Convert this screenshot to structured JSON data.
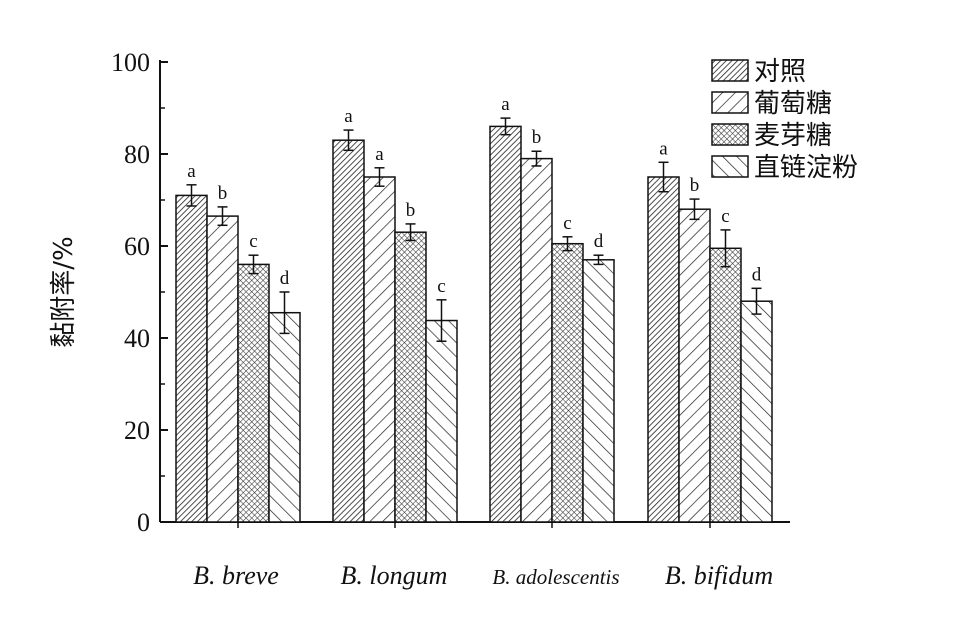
{
  "chart_data": {
    "type": "bar",
    "title": "",
    "xlabel": "",
    "ylabel": "黏附率/%",
    "ylim": [
      0,
      100
    ],
    "yticks": [
      "0",
      "20",
      "40",
      "60",
      "80",
      "100"
    ],
    "legend_position": "top-right",
    "categories": [
      "B. breve",
      "B. longum",
      "B. adolescentis",
      "B. bifidum"
    ],
    "series": [
      {
        "name": "对照",
        "pattern": "dense-diagonal",
        "values": [
          71,
          83,
          86,
          75
        ],
        "errors": [
          2.3,
          2.2,
          1.8,
          3.2
        ],
        "labels": [
          "a",
          "a",
          "a",
          "a"
        ]
      },
      {
        "name": "葡萄糖",
        "pattern": "wide-diagonal",
        "values": [
          66.5,
          75,
          79,
          68
        ],
        "errors": [
          2.0,
          2.0,
          1.6,
          2.2
        ],
        "labels": [
          "b",
          "a",
          "b",
          "b"
        ]
      },
      {
        "name": "麦芽糖",
        "pattern": "cross-hatch",
        "values": [
          56,
          63,
          60.5,
          59.5
        ],
        "errors": [
          2.0,
          1.8,
          1.5,
          4.0
        ],
        "labels": [
          "c",
          "b",
          "c",
          "c"
        ]
      },
      {
        "name": "直链淀粉",
        "pattern": "back-diagonal",
        "values": [
          45.5,
          43.8,
          57,
          48
        ],
        "errors": [
          4.5,
          4.5,
          1.0,
          2.8
        ],
        "labels": [
          "d",
          "c",
          "d",
          "d"
        ]
      }
    ]
  }
}
